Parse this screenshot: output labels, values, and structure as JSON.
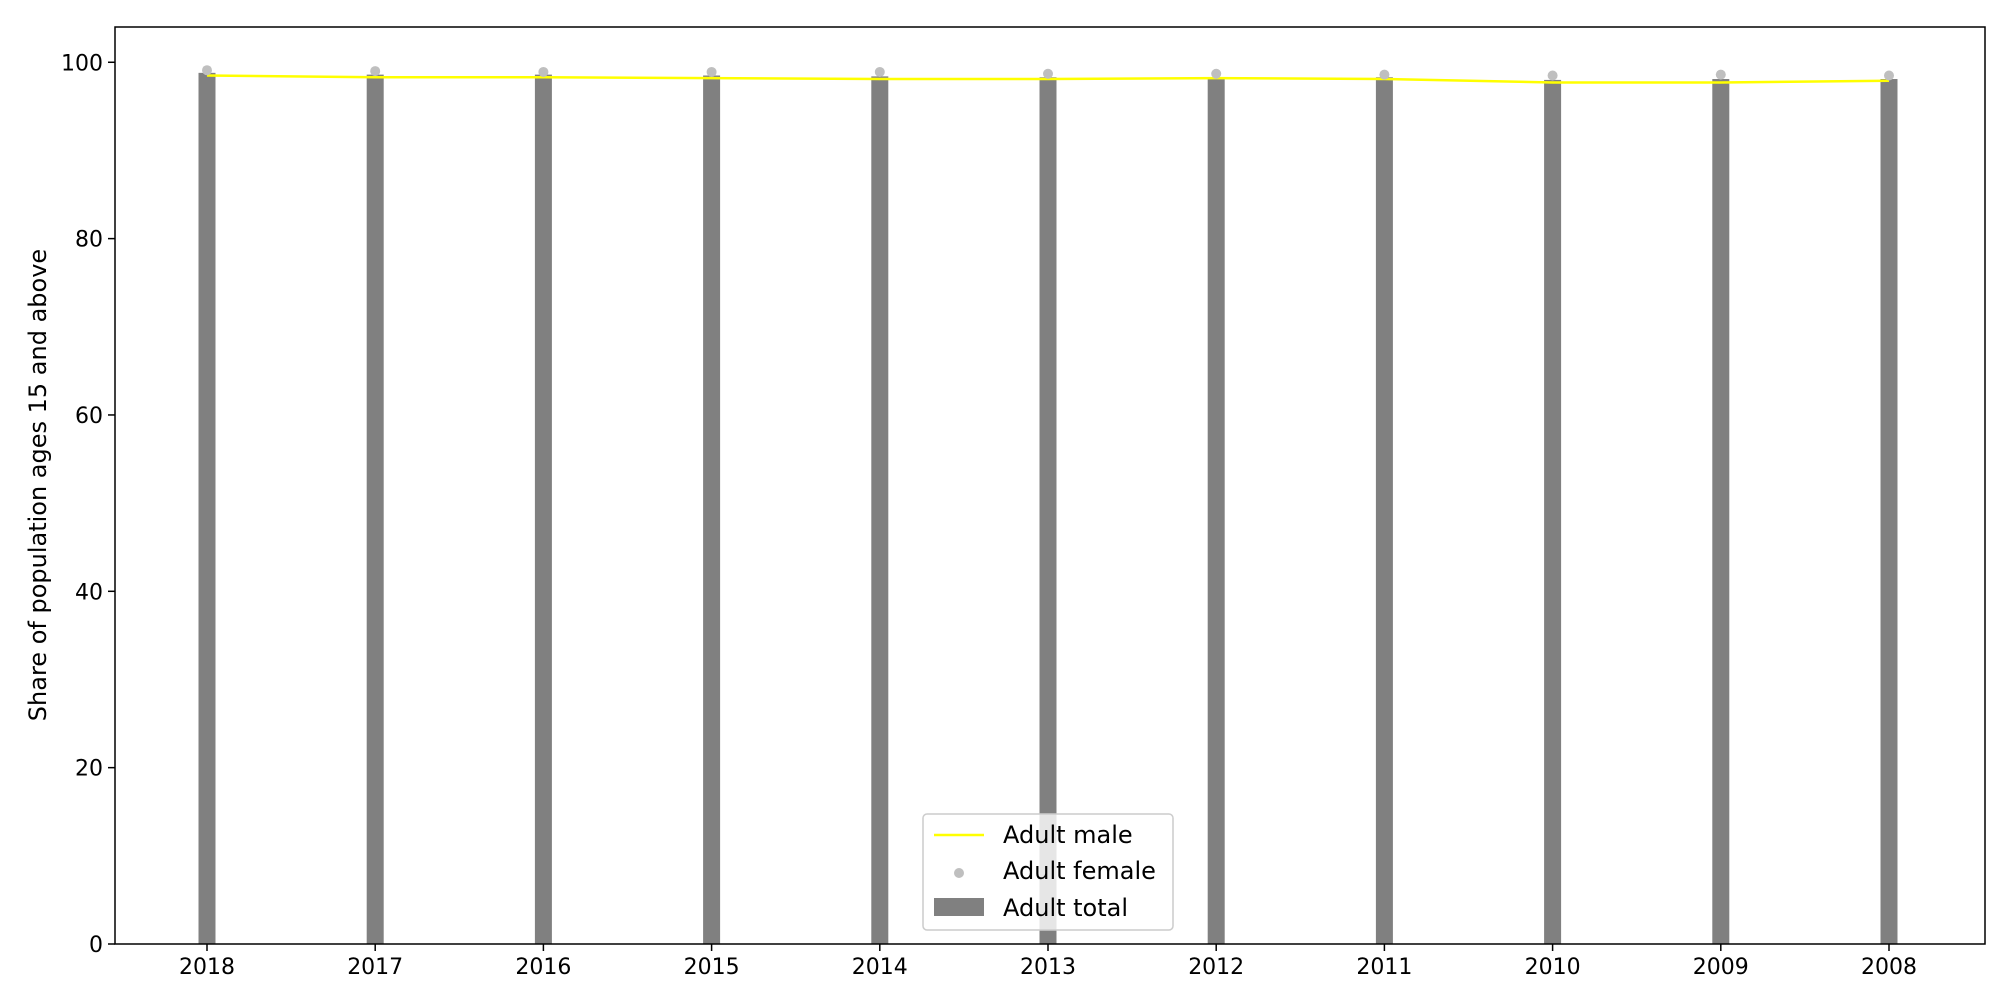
{
  "chart_data": {
    "type": "bar",
    "title": "",
    "xlabel": "",
    "ylabel": "Share of population ages 15 and above",
    "categories": [
      "2018",
      "2017",
      "2016",
      "2015",
      "2014",
      "2013",
      "2012",
      "2011",
      "2010",
      "2009",
      "2008"
    ],
    "ylim": [
      0,
      104
    ],
    "yticks": [
      0,
      20,
      40,
      60,
      80,
      100
    ],
    "grid": false,
    "legend_position": "bottom-center",
    "series": [
      {
        "name": "Adult male",
        "type": "line",
        "color": "#ffff00",
        "values": [
          98.5,
          98.3,
          98.3,
          98.2,
          98.1,
          98.1,
          98.2,
          98.1,
          97.7,
          97.7,
          97.9
        ]
      },
      {
        "name": "Adult female",
        "type": "scatter",
        "color": "#bfbfbf",
        "values": [
          99.1,
          99.0,
          98.9,
          98.9,
          98.9,
          98.7,
          98.7,
          98.6,
          98.5,
          98.6,
          98.5
        ]
      },
      {
        "name": "Adult total",
        "type": "bar",
        "color": "#808080",
        "values": [
          98.8,
          98.6,
          98.6,
          98.5,
          98.4,
          98.3,
          98.3,
          98.3,
          98.0,
          98.1,
          98.1
        ]
      }
    ]
  }
}
